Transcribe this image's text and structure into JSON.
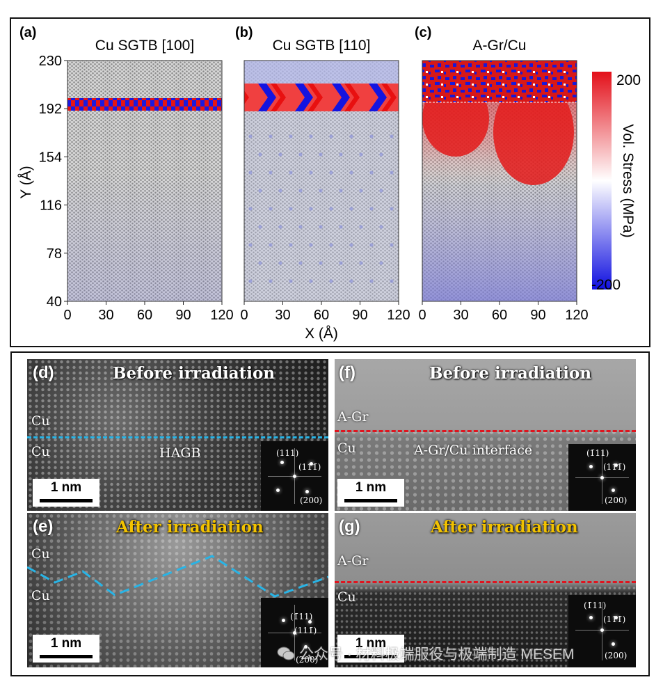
{
  "chart_data": {
    "type": "heatmap",
    "panels": [
      {
        "label": "(a)",
        "title": "Cu SGTB [100]"
      },
      {
        "label": "(b)",
        "title": "Cu SGTB [110]"
      },
      {
        "label": "(c)",
        "title": "A-Gr/Cu"
      }
    ],
    "xlabel": "X (Å)",
    "ylabel": "Y (Å)",
    "x_ticks": [
      0,
      30,
      60,
      90,
      120
    ],
    "y_ticks": [
      230,
      192,
      154,
      116,
      78,
      40
    ],
    "xlim": [
      0,
      120
    ],
    "ylim": [
      40,
      230
    ],
    "colorbar": {
      "label": "Vol. Stress (MPa)",
      "max_label": "200",
      "min_label": "-200",
      "range": [
        -200,
        200
      ]
    },
    "boundary_y": 192
  },
  "tem_panels": [
    {
      "label": "(d)",
      "title": "Before irradiation",
      "top_material": "Cu",
      "bottom_material": "Cu",
      "interface_label": "HAGB",
      "scale": "1 nm",
      "fft": [
        "(111)",
        "(11̄1̄)",
        "(200)"
      ]
    },
    {
      "label": "(e)",
      "title": "After irradiation",
      "top_material": "Cu",
      "bottom_material": "Cu",
      "scale": "1 nm",
      "fft": [
        "(1̄11)",
        "(111̄)",
        "(200)"
      ]
    },
    {
      "label": "(f)",
      "title": "Before irradiation",
      "top_material": "A-Gr",
      "bottom_material": "Cu",
      "interface_label": "A-Gr/Cu interface",
      "scale": "1 nm",
      "fft": [
        "(1̄11)",
        "(111̄)",
        "(200)"
      ]
    },
    {
      "label": "(g)",
      "title": "After irradiation",
      "top_material": "A-Gr",
      "bottom_material": "Cu",
      "scale": "1 nm",
      "fft": [
        "(1̄11)",
        "(111̄)",
        "(200)"
      ]
    }
  ],
  "colors": {
    "title_before": "#ffffff",
    "title_after": "#f2c200",
    "hagb_line": "#28b4e6",
    "interface_line": "#e0141e",
    "stress_high": "#e8101a",
    "stress_low": "#1a1ae6"
  },
  "watermark": "公众号 · 材料极端服役与极端制造 MESEM"
}
